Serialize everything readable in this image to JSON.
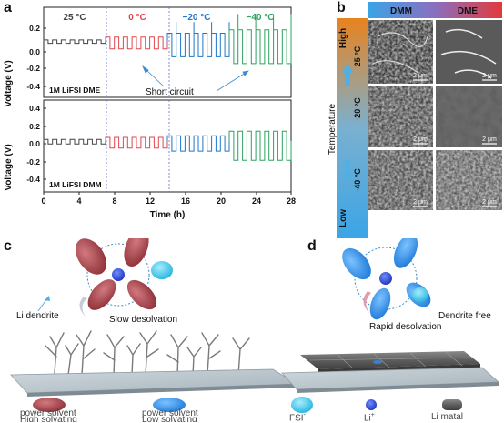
{
  "panels": {
    "a": "a",
    "b": "b",
    "c": "c",
    "d": "d"
  },
  "panel_a": {
    "ylabel": "Voltage (V)",
    "xlabel": "Time (h)",
    "yticks": [
      "0.4",
      "0.2",
      "0.0",
      "-0.2",
      "-0.4"
    ],
    "xticks": [
      "0",
      "4",
      "8",
      "12",
      "16",
      "20",
      "24",
      "28"
    ],
    "temps": [
      {
        "label": "25 °C",
        "color": "#444444"
      },
      {
        "label": "0 °C",
        "color": "#e0474c"
      },
      {
        "label": "−20 °C",
        "color": "#1f77c9"
      },
      {
        "label": "−40 °C",
        "color": "#2ca25f"
      }
    ],
    "top_label": "1M LiFSI DME",
    "bottom_label": "1M LiFSI DMM",
    "annotation": "Short circuit"
  },
  "panel_b": {
    "col_dmm": "DMM",
    "col_dme": "DME",
    "axis_label": "Temperature",
    "high": "High",
    "low": "Low",
    "rows": [
      "25 °C",
      "-20 °C",
      "-40 °C"
    ],
    "scale": "2 μm"
  },
  "panel_c": {
    "dendrite_label": "Li  dendrite",
    "process_label": "Slow desolvation"
  },
  "panel_d": {
    "free_label": "Dendrite free",
    "process_label": "Rapid desolvation"
  },
  "legend": {
    "high_line1": "High solvating",
    "high_line2": "power solvent",
    "low_line1": "Low solvating",
    "low_line2": "power solvent",
    "fsi": "FSI",
    "fsi_sup": "-",
    "li": "Li",
    "li_sup": "+",
    "metal": "Li matal"
  },
  "colors": {
    "c25": "#444444",
    "c0": "#e0474c",
    "cm20": "#1f77c9",
    "cm40": "#2ca25f",
    "high_solvent": "#a5454d",
    "low_solvent": "#2f8fe0",
    "fsi": "#3cc5e6",
    "li_ion": "#2f50d8"
  },
  "chart_data": [
    {
      "type": "line",
      "title": "1M LiFSI DME",
      "xlabel": "Time (h)",
      "ylabel": "Voltage (V)",
      "xlim": [
        0,
        28
      ],
      "ylim": [
        -0.5,
        0.3
      ],
      "series": [
        {
          "name": "25 °C",
          "x": [
            0,
            7
          ],
          "amplitude": 0.02
        },
        {
          "name": "0 °C",
          "x": [
            7,
            14
          ],
          "amplitude": 0.07
        },
        {
          "name": "−20 °C",
          "x": [
            14,
            21
          ],
          "amplitude": 0.14
        },
        {
          "name": "−40 °C",
          "x": [
            21,
            28
          ],
          "amplitude": 0.2
        }
      ]
    },
    {
      "type": "line",
      "title": "1M LiFSI DMM",
      "xlabel": "Time (h)",
      "ylabel": "Voltage (V)",
      "xlim": [
        0,
        28
      ],
      "ylim": [
        -0.5,
        0.4
      ],
      "series": [
        {
          "name": "25 °C",
          "x": [
            0,
            7
          ],
          "amplitude": 0.03
        },
        {
          "name": "0 °C",
          "x": [
            7,
            14
          ],
          "amplitude": 0.07
        },
        {
          "name": "−20 °C",
          "x": [
            14,
            21
          ],
          "amplitude": 0.1
        },
        {
          "name": "−40 °C",
          "x": [
            21,
            28
          ],
          "amplitude": 0.19
        }
      ]
    }
  ]
}
